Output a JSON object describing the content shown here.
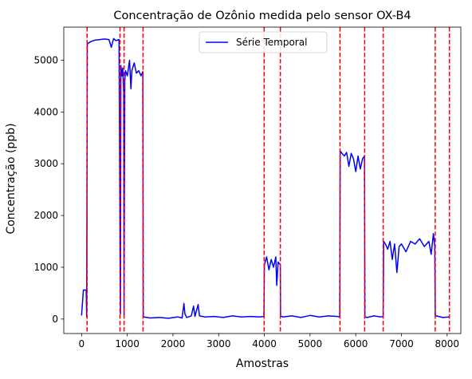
{
  "chart_data": {
    "type": "line",
    "title": "Concentração de Ozônio medida pelo sensor OX-B4",
    "xlabel": "Amostras",
    "ylabel": "Concentração (ppb)",
    "xlim": [
      -390,
      8300
    ],
    "ylim": [
      -280,
      5640
    ],
    "xticks": [
      0,
      1000,
      2000,
      3000,
      4000,
      5000,
      6000,
      7000,
      8000
    ],
    "yticks": [
      0,
      1000,
      2000,
      3000,
      4000,
      5000
    ],
    "grid": false,
    "legend_position": "top-center",
    "series": [
      {
        "name": "Série Temporal",
        "color": "#0000ff",
        "points": [
          [
            0,
            70
          ],
          [
            40,
            560
          ],
          [
            100,
            560
          ],
          [
            110,
            40
          ],
          [
            125,
            5320
          ],
          [
            200,
            5360
          ],
          [
            300,
            5390
          ],
          [
            400,
            5400
          ],
          [
            500,
            5410
          ],
          [
            600,
            5400
          ],
          [
            650,
            5250
          ],
          [
            700,
            5420
          ],
          [
            750,
            5380
          ],
          [
            820,
            5400
          ],
          [
            840,
            1500
          ],
          [
            850,
            100
          ],
          [
            860,
            4900
          ],
          [
            880,
            4700
          ],
          [
            900,
            4850
          ],
          [
            920,
            4400
          ],
          [
            930,
            80
          ],
          [
            945,
            4600
          ],
          [
            960,
            4800
          ],
          [
            1000,
            4700
          ],
          [
            1050,
            5000
          ],
          [
            1080,
            4450
          ],
          [
            1100,
            4800
          ],
          [
            1150,
            4950
          ],
          [
            1200,
            4750
          ],
          [
            1250,
            4800
          ],
          [
            1300,
            4700
          ],
          [
            1340,
            4780
          ],
          [
            1350,
            60
          ],
          [
            1360,
            40
          ],
          [
            1500,
            20
          ],
          [
            1700,
            30
          ],
          [
            1900,
            15
          ],
          [
            2100,
            40
          ],
          [
            2200,
            20
          ],
          [
            2240,
            300
          ],
          [
            2260,
            100
          ],
          [
            2300,
            30
          ],
          [
            2400,
            60
          ],
          [
            2450,
            250
          ],
          [
            2480,
            50
          ],
          [
            2550,
            280
          ],
          [
            2580,
            60
          ],
          [
            2700,
            40
          ],
          [
            2900,
            50
          ],
          [
            3100,
            30
          ],
          [
            3300,
            60
          ],
          [
            3500,
            40
          ],
          [
            3700,
            50
          ],
          [
            3900,
            40
          ],
          [
            3990,
            50
          ],
          [
            4000,
            1050
          ],
          [
            4050,
            1200
          ],
          [
            4100,
            950
          ],
          [
            4150,
            1150
          ],
          [
            4200,
            1000
          ],
          [
            4250,
            1200
          ],
          [
            4270,
            650
          ],
          [
            4300,
            1100
          ],
          [
            4350,
            1050
          ],
          [
            4355,
            60
          ],
          [
            4400,
            40
          ],
          [
            4600,
            60
          ],
          [
            4800,
            30
          ],
          [
            5000,
            70
          ],
          [
            5200,
            40
          ],
          [
            5400,
            60
          ],
          [
            5600,
            50
          ],
          [
            5650,
            40
          ],
          [
            5660,
            3250
          ],
          [
            5700,
            3200
          ],
          [
            5750,
            3150
          ],
          [
            5800,
            3220
          ],
          [
            5850,
            2950
          ],
          [
            5900,
            3200
          ],
          [
            5950,
            3100
          ],
          [
            6000,
            2850
          ],
          [
            6050,
            3150
          ],
          [
            6100,
            2900
          ],
          [
            6150,
            3100
          ],
          [
            6190,
            3150
          ],
          [
            6200,
            40
          ],
          [
            6250,
            30
          ],
          [
            6400,
            60
          ],
          [
            6550,
            40
          ],
          [
            6600,
            50
          ],
          [
            6610,
            1500
          ],
          [
            6650,
            1450
          ],
          [
            6700,
            1350
          ],
          [
            6750,
            1500
          ],
          [
            6800,
            1150
          ],
          [
            6850,
            1450
          ],
          [
            6900,
            900
          ],
          [
            6950,
            1400
          ],
          [
            7000,
            1450
          ],
          [
            7100,
            1300
          ],
          [
            7200,
            1500
          ],
          [
            7300,
            1450
          ],
          [
            7400,
            1550
          ],
          [
            7500,
            1400
          ],
          [
            7600,
            1500
          ],
          [
            7650,
            1250
          ],
          [
            7700,
            1650
          ],
          [
            7730,
            1400
          ],
          [
            7740,
            80
          ],
          [
            7760,
            60
          ],
          [
            7900,
            30
          ],
          [
            8050,
            40
          ]
        ]
      }
    ],
    "vlines": {
      "style": "dashed",
      "color": "#ff0000",
      "x": [
        120,
        840,
        930,
        1345,
        3995,
        4350,
        5655,
        6195,
        6600,
        7740,
        8050
      ]
    }
  }
}
